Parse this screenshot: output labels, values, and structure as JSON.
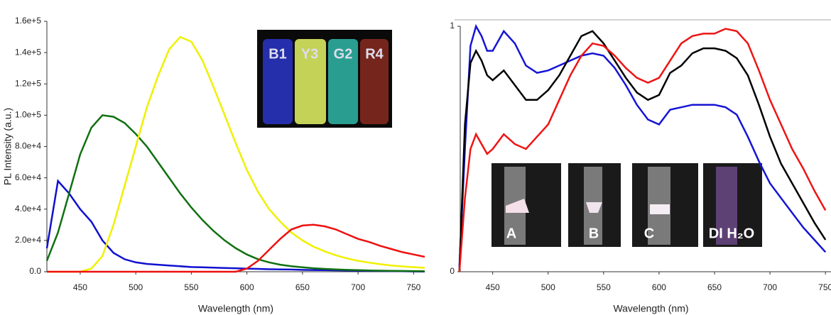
{
  "chart_data": [
    {
      "type": "line",
      "xlabel": "Wavelength (nm)",
      "ylabel": "PL Intensity (a.u.)",
      "xlim": [
        420,
        760
      ],
      "ylim": [
        0,
        160000
      ],
      "xticks": [
        450,
        500,
        550,
        600,
        650,
        700,
        750
      ],
      "yticks": [
        {
          "value": 0,
          "label": "0.0"
        },
        {
          "value": 20000,
          "label": "2.0e+4"
        },
        {
          "value": 40000,
          "label": "4.0e+4"
        },
        {
          "value": 60000,
          "label": "6.0e+4"
        },
        {
          "value": 80000,
          "label": "8.0e+4"
        },
        {
          "value": 100000,
          "label": "1.0e+5"
        },
        {
          "value": 120000,
          "label": "1.2e+5"
        },
        {
          "value": 140000,
          "label": "1.4e+5"
        },
        {
          "value": 160000,
          "label": "1.6e+5"
        }
      ],
      "inset_labels": [
        "B1",
        "Y3",
        "G2",
        "R4"
      ],
      "x": [
        420,
        430,
        440,
        450,
        460,
        470,
        480,
        490,
        500,
        510,
        520,
        530,
        540,
        550,
        560,
        570,
        580,
        590,
        600,
        610,
        620,
        630,
        640,
        650,
        660,
        670,
        680,
        690,
        700,
        710,
        720,
        730,
        740,
        750,
        760
      ],
      "series": [
        {
          "color": "#1010d0",
          "values": [
            15000,
            58000,
            50000,
            40000,
            32000,
            20000,
            12000,
            8000,
            6000,
            5000,
            4500,
            4000,
            3500,
            3000,
            2800,
            2600,
            2400,
            2200,
            2000,
            1800,
            1600,
            1500,
            1400,
            1200,
            1100,
            1000,
            900,
            800,
            700,
            600,
            500,
            400,
            300,
            200,
            100
          ]
        },
        {
          "color": "#107010",
          "values": [
            7000,
            25000,
            50000,
            75000,
            92000,
            100000,
            99000,
            95000,
            88000,
            80000,
            70000,
            60000,
            50000,
            41000,
            33000,
            26000,
            20000,
            15000,
            11000,
            8000,
            6000,
            4500,
            3500,
            2800,
            2200,
            1800,
            1500,
            1200,
            1000,
            800,
            700,
            600,
            500,
            400,
            300
          ]
        },
        {
          "color": "#f0f000",
          "values": [
            0,
            0,
            0,
            0,
            2000,
            10000,
            30000,
            55000,
            80000,
            105000,
            125000,
            142000,
            150000,
            147000,
            135000,
            118000,
            100000,
            82000,
            65000,
            51000,
            40000,
            32000,
            25000,
            20000,
            16000,
            13000,
            10500,
            8500,
            7000,
            5800,
            4800,
            4000,
            3400,
            2900,
            2500
          ]
        },
        {
          "color": "#ee1010",
          "values": [
            0,
            0,
            0,
            0,
            0,
            0,
            0,
            0,
            0,
            0,
            0,
            0,
            0,
            0,
            0,
            0,
            0,
            0,
            2000,
            7000,
            14000,
            21000,
            27000,
            29500,
            30000,
            29000,
            27000,
            24000,
            21000,
            19000,
            16500,
            14500,
            12500,
            11000,
            9500
          ]
        }
      ]
    },
    {
      "type": "line",
      "xlabel": "Wavelength (nm)",
      "xlim": [
        415,
        755
      ],
      "ylim": [
        0,
        1
      ],
      "xticks": [
        450,
        500,
        550,
        600,
        650,
        700,
        750
      ],
      "yticks": [
        0,
        1
      ],
      "inset_labels": [
        "A",
        "B",
        "C",
        "DI H₂O"
      ],
      "x": [
        420,
        425,
        430,
        435,
        440,
        445,
        450,
        460,
        470,
        480,
        490,
        500,
        510,
        520,
        530,
        540,
        550,
        560,
        570,
        580,
        590,
        600,
        610,
        620,
        630,
        640,
        650,
        660,
        670,
        680,
        690,
        700,
        710,
        720,
        730,
        740,
        750
      ],
      "series": [
        {
          "color": "#1515d5",
          "values": [
            0.02,
            0.5,
            0.92,
            1.0,
            0.96,
            0.9,
            0.9,
            0.98,
            0.93,
            0.84,
            0.81,
            0.82,
            0.84,
            0.86,
            0.88,
            0.89,
            0.88,
            0.83,
            0.76,
            0.68,
            0.62,
            0.6,
            0.66,
            0.67,
            0.68,
            0.68,
            0.68,
            0.67,
            0.64,
            0.55,
            0.45,
            0.36,
            0.3,
            0.24,
            0.18,
            0.13,
            0.08
          ]
        },
        {
          "color": "#000000",
          "values": [
            0,
            0.6,
            0.85,
            0.9,
            0.86,
            0.8,
            0.78,
            0.82,
            0.76,
            0.7,
            0.7,
            0.74,
            0.8,
            0.88,
            0.96,
            0.98,
            0.93,
            0.86,
            0.79,
            0.73,
            0.7,
            0.72,
            0.81,
            0.84,
            0.89,
            0.91,
            0.91,
            0.9,
            0.87,
            0.8,
            0.68,
            0.55,
            0.44,
            0.36,
            0.28,
            0.2,
            0.13
          ]
        },
        {
          "color": "#ee1515",
          "values": [
            0,
            0.3,
            0.5,
            0.56,
            0.52,
            0.48,
            0.5,
            0.56,
            0.52,
            0.5,
            0.55,
            0.6,
            0.7,
            0.8,
            0.88,
            0.93,
            0.92,
            0.88,
            0.83,
            0.79,
            0.77,
            0.79,
            0.86,
            0.93,
            0.96,
            0.97,
            0.97,
            0.99,
            0.98,
            0.93,
            0.82,
            0.7,
            0.6,
            0.5,
            0.42,
            0.33,
            0.25
          ]
        }
      ]
    }
  ]
}
